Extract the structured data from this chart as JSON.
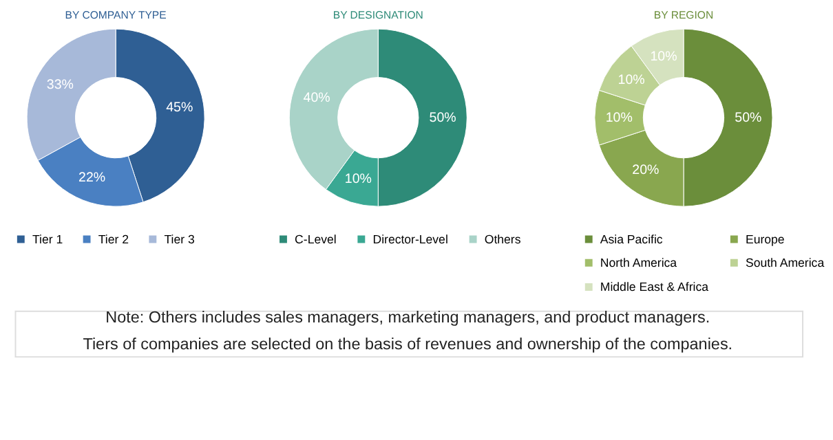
{
  "chart_data": [
    {
      "type": "donut",
      "title": "BY COMPANY TYPE",
      "categories": [
        "Tier 1",
        "Tier 2",
        "Tier 3"
      ],
      "values": [
        45,
        22,
        33
      ],
      "value_labels": [
        "45%",
        "22%",
        "33%"
      ],
      "colors": [
        "#2f5f94",
        "#4a80c2",
        "#a7b9d9"
      ],
      "legend": "bottom"
    },
    {
      "type": "donut",
      "title": "BY DESIGNATION",
      "categories": [
        "C-Level",
        "Director-Level",
        "Others"
      ],
      "values": [
        50,
        10,
        40
      ],
      "value_labels": [
        "50%",
        "10%",
        "40%"
      ],
      "colors": [
        "#2e8b78",
        "#3aa893",
        "#a9d3c8"
      ],
      "legend": "bottom"
    },
    {
      "type": "donut",
      "title": "BY REGION",
      "categories": [
        "Asia Pacific",
        "Europe",
        "North America",
        "South America",
        "Middle East & Africa"
      ],
      "values": [
        50,
        20,
        10,
        10,
        10
      ],
      "value_labels": [
        "50%",
        "20%",
        "10%",
        "10%",
        "10%"
      ],
      "colors": [
        "#6b8e3b",
        "#89a74f",
        "#a2be6a",
        "#bdd294",
        "#d5e2bf"
      ],
      "legend": "bottom",
      "annotations": [
        "Note: Others includes sales managers, marketing managers, and product managers.",
        "Tiers of companies are selected on the basis of revenues and ownership of the companies."
      ]
    }
  ]
}
